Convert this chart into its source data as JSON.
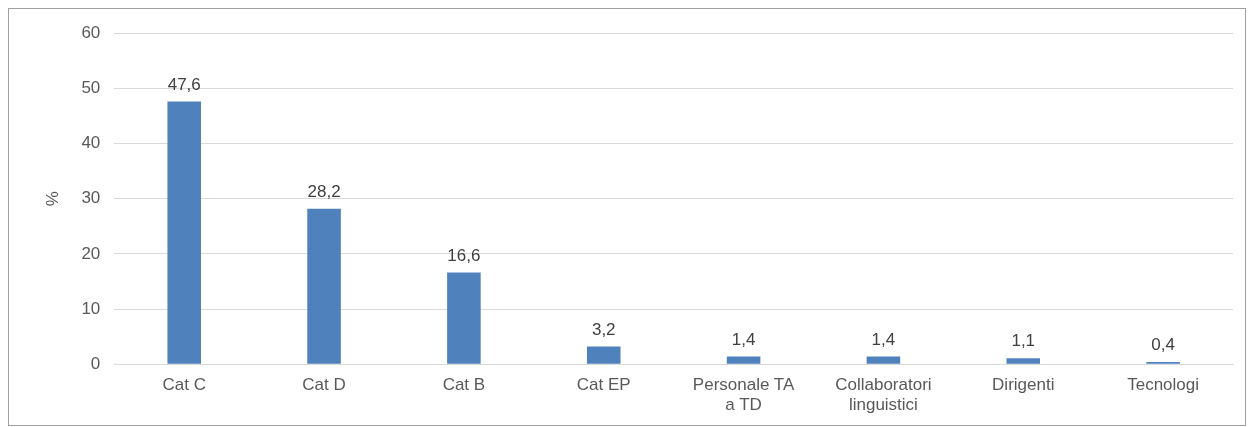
{
  "chart_data": {
    "type": "bar",
    "ylabel": "%",
    "categories": [
      "Cat C",
      "Cat D",
      "Cat B",
      "Cat EP",
      "Personale TA a TD",
      "Collaboratori linguistici",
      "Dirigenti",
      "Tecnologi"
    ],
    "values": [
      47.6,
      28.2,
      16.6,
      3.2,
      1.4,
      1.4,
      1.1,
      0.4
    ],
    "value_labels": [
      "47,6",
      "28,2",
      "16,6",
      "3,2",
      "1,4",
      "1,4",
      "1,1",
      "0,4"
    ],
    "color": "#4f81bd",
    "ylim": [
      0,
      60
    ],
    "yticks": [
      0,
      10,
      20,
      30,
      40,
      50,
      60
    ],
    "grid": "y",
    "legend": false
  }
}
